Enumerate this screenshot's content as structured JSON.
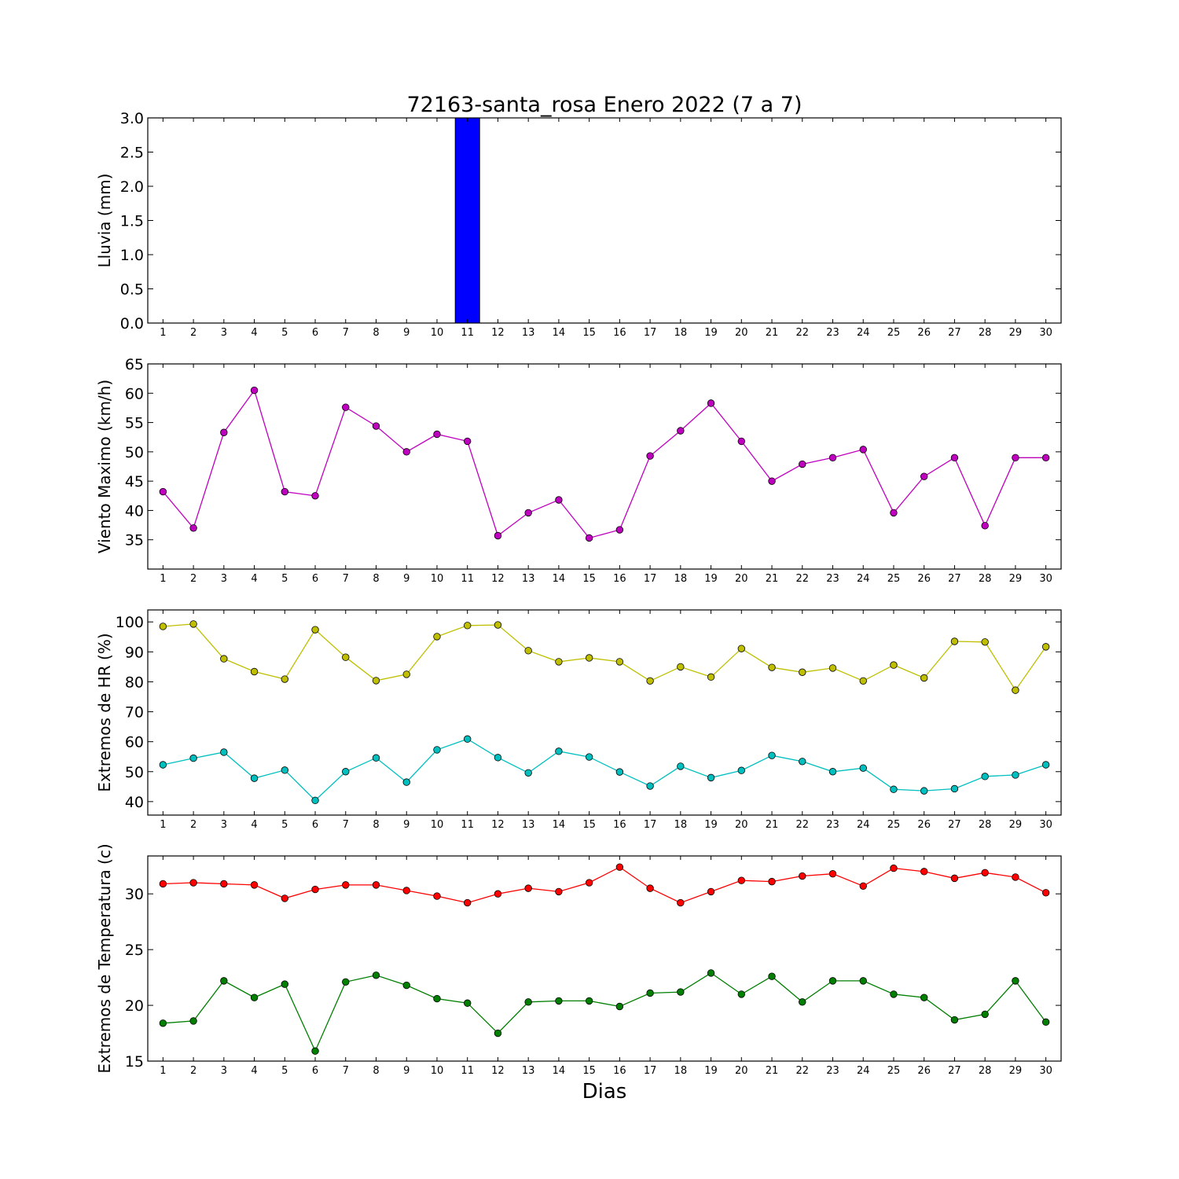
{
  "chart_data": {
    "title": "72163-santa_rosa Enero 2022  (7 a 7)",
    "xlabel": "Dias",
    "days": [
      1,
      2,
      3,
      4,
      5,
      6,
      7,
      8,
      9,
      10,
      11,
      12,
      13,
      14,
      15,
      16,
      17,
      18,
      19,
      20,
      21,
      22,
      23,
      24,
      25,
      26,
      27,
      28,
      29,
      30
    ],
    "panels": [
      {
        "id": "lluvia",
        "type": "bar",
        "ylabel": "Lluvia (mm)",
        "ylim": [
          0,
          3.0
        ],
        "yticks": [
          "0.0",
          "0.5",
          "1.0",
          "1.5",
          "2.0",
          "2.5",
          "3.0"
        ],
        "series": [
          {
            "color": "#0000ff",
            "values": [
              0,
              0,
              0,
              0,
              0,
              0,
              0,
              0,
              0,
              0,
              3.0,
              0,
              0,
              0,
              0,
              0,
              0,
              0,
              0,
              0,
              0,
              0,
              0,
              0,
              0,
              0,
              0,
              0,
              0,
              0
            ]
          }
        ]
      },
      {
        "id": "viento",
        "type": "line",
        "ylabel": "Viento Maximo (km/h)",
        "ylim": [
          30,
          65
        ],
        "yticks": [
          "35",
          "40",
          "45",
          "50",
          "55",
          "60",
          "65"
        ],
        "series": [
          {
            "color": "#bf00bf",
            "values": [
              43.2,
              37.0,
              53.3,
              60.5,
              43.2,
              42.5,
              57.6,
              54.4,
              50.0,
              53.0,
              51.8,
              35.7,
              39.6,
              41.8,
              35.3,
              36.7,
              49.3,
              53.6,
              58.3,
              51.8,
              45.0,
              47.9,
              49.0,
              50.4,
              39.6,
              45.8,
              49.0,
              37.4,
              49.0,
              49.0
            ]
          }
        ]
      },
      {
        "id": "humedad",
        "type": "line",
        "ylabel": "Extremos de HR (%)",
        "ylim": [
          35.5,
          104
        ],
        "yticks": [
          "40",
          "50",
          "60",
          "70",
          "80",
          "90",
          "100"
        ],
        "series": [
          {
            "color": "#bfbf00",
            "values": [
              98.5,
              99.3,
              87.7,
              83.4,
              80.9,
              97.4,
              88.2,
              80.4,
              82.5,
              95.1,
              98.8,
              99.0,
              90.4,
              86.7,
              88.0,
              86.7,
              80.3,
              85.0,
              81.6,
              91.1,
              84.8,
              83.2,
              84.6,
              80.3,
              85.6,
              81.3,
              93.5,
              93.3,
              77.2,
              91.7
            ]
          },
          {
            "color": "#00bfbf",
            "values": [
              52.3,
              54.5,
              56.5,
              47.8,
              50.5,
              40.4,
              50.0,
              54.6,
              46.5,
              57.3,
              60.9,
              54.7,
              49.6,
              56.8,
              54.9,
              49.9,
              45.2,
              51.8,
              48.0,
              50.4,
              55.4,
              53.4,
              50.0,
              51.2,
              44.1,
              43.6,
              44.3,
              48.4,
              48.9,
              52.3
            ]
          }
        ]
      },
      {
        "id": "temperatura",
        "type": "line",
        "ylabel": "Extremos de Temperatura (c)",
        "ylim": [
          15,
          33.4
        ],
        "yticks": [
          "15",
          "20",
          "25",
          "30"
        ],
        "series": [
          {
            "color": "#ff0000",
            "values": [
              30.9,
              31.0,
              30.9,
              30.8,
              29.6,
              30.4,
              30.8,
              30.8,
              30.3,
              29.8,
              29.2,
              30.0,
              30.5,
              30.2,
              31.0,
              32.4,
              30.5,
              29.2,
              30.2,
              31.2,
              31.1,
              31.6,
              31.8,
              30.7,
              32.3,
              32.0,
              31.4,
              31.9,
              31.5,
              30.1
            ]
          },
          {
            "color": "#007f00",
            "values": [
              18.4,
              18.6,
              22.2,
              20.7,
              21.9,
              15.9,
              22.1,
              22.7,
              21.8,
              20.6,
              20.2,
              17.5,
              20.3,
              20.4,
              20.4,
              19.9,
              21.1,
              21.2,
              22.9,
              21.0,
              22.6,
              20.3,
              22.2,
              22.2,
              21.0,
              20.7,
              18.7,
              19.2,
              22.2,
              18.5
            ]
          }
        ]
      }
    ]
  }
}
